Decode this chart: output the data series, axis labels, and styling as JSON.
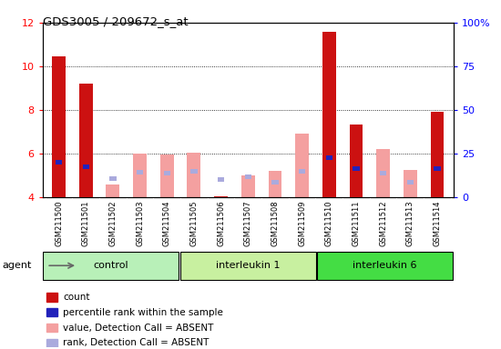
{
  "title": "GDS3005 / 209672_s_at",
  "samples": [
    "GSM211500",
    "GSM211501",
    "GSM211502",
    "GSM211503",
    "GSM211504",
    "GSM211505",
    "GSM211506",
    "GSM211507",
    "GSM211508",
    "GSM211509",
    "GSM211510",
    "GSM211511",
    "GSM211512",
    "GSM211513",
    "GSM211514"
  ],
  "groups": [
    {
      "label": "control",
      "color": "#b8f0b8",
      "start": 0,
      "end": 4
    },
    {
      "label": "interleukin 1",
      "color": "#c8f0a0",
      "start": 5,
      "end": 9
    },
    {
      "label": "interleukin 6",
      "color": "#44dd44",
      "start": 10,
      "end": 14
    }
  ],
  "red_values": [
    10.45,
    9.2,
    null,
    null,
    null,
    null,
    4.05,
    null,
    null,
    null,
    11.6,
    7.35,
    null,
    null,
    7.9
  ],
  "pink_values": [
    null,
    null,
    4.6,
    6.0,
    5.95,
    6.05,
    null,
    5.0,
    5.2,
    6.9,
    null,
    null,
    6.2,
    5.25,
    null
  ],
  "blue_values": [
    5.6,
    5.4,
    null,
    null,
    null,
    null,
    null,
    null,
    null,
    null,
    5.8,
    5.3,
    null,
    null,
    5.3
  ],
  "lavender_values": [
    null,
    null,
    4.85,
    5.15,
    5.1,
    5.2,
    4.8,
    4.95,
    4.7,
    5.2,
    null,
    null,
    5.1,
    4.7,
    null
  ],
  "ylim": [
    4,
    12
  ],
  "yticks": [
    4,
    6,
    8,
    10,
    12
  ],
  "right_yticks": [
    0,
    25,
    50,
    75,
    100
  ],
  "bar_width": 0.5,
  "bg_color": "#d4d4d4",
  "plot_bg": "#ffffff",
  "red_color": "#cc1111",
  "pink_color": "#f4a0a0",
  "blue_color": "#2222bb",
  "lavender_color": "#aaaadd"
}
